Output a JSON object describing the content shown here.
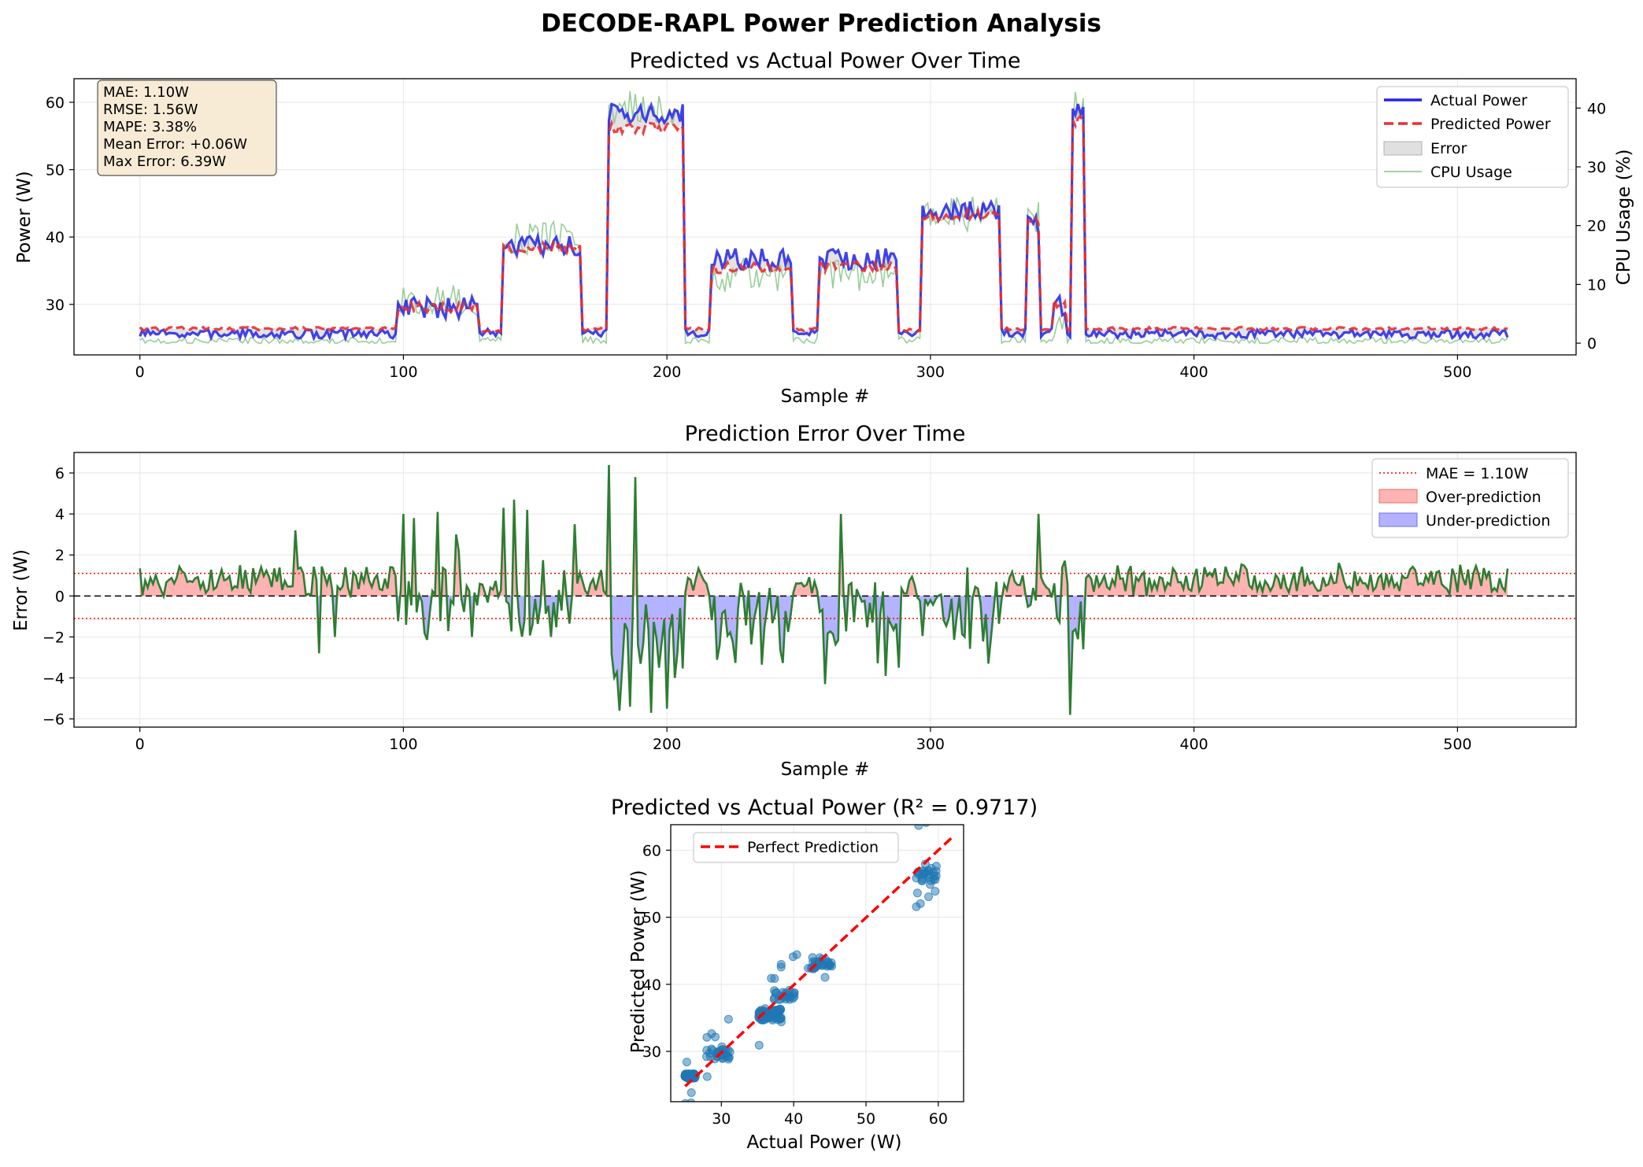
{
  "figure": {
    "title": "DECODE-RAPL Power Prediction Analysis"
  },
  "colors": {
    "actual": "#2222e8",
    "predicted": "#e83030",
    "cpu": "#88c488",
    "error_line": "#2e7d32",
    "over_fill": "#ff9999",
    "under_fill": "#9999ff",
    "mae_line": "#ff0000",
    "scatter": "#1f77b4",
    "perfect": "#ff0000",
    "stats_box": "#f8ebd6",
    "left_axis_text": "#0000ff",
    "right_axis_text": "#008000"
  },
  "chart_data": [
    {
      "id": "timeseries",
      "type": "line",
      "title": "Predicted vs Actual Power Over Time",
      "xlabel": "Sample #",
      "ylabel": "Power (W)",
      "y2label": "CPU Usage (%)",
      "xlim": [
        -25,
        545
      ],
      "ylim": [
        22.5,
        63.5
      ],
      "y2lim": [
        -2,
        45
      ],
      "xticks": [
        0,
        100,
        200,
        300,
        400,
        500
      ],
      "yticks": [
        30,
        40,
        50,
        60
      ],
      "y2ticks": [
        0,
        10,
        20,
        30,
        40
      ],
      "grid": true,
      "legend": "top-right",
      "legend_labels": {
        "actual": "Actual Power",
        "predicted": "Predicted Power",
        "error": "Error",
        "cpu": "CPU Usage"
      },
      "stats": [
        "MAE: 1.10W",
        "RMSE: 1.56W",
        "MAPE: 3.38%",
        "Mean Error: +0.06W",
        "Max Error: 6.39W"
      ],
      "segments": [
        {
          "start": 0,
          "end": 97,
          "actual": 25.6,
          "predicted": 26.4,
          "cpu": 0.4
        },
        {
          "start": 98,
          "end": 128,
          "actual": 29.5,
          "predicted": 29.6,
          "cpu": 7
        },
        {
          "start": 129,
          "end": 137,
          "actual": 25.8,
          "predicted": 26.2,
          "cpu": 0.5
        },
        {
          "start": 138,
          "end": 167,
          "actual": 38.5,
          "predicted": 38.4,
          "cpu": 18
        },
        {
          "start": 168,
          "end": 177,
          "actual": 25.8,
          "predicted": 26.3,
          "cpu": 0.5
        },
        {
          "start": 178,
          "end": 206,
          "actual": 58.2,
          "predicted": 56.2,
          "cpu": 40
        },
        {
          "start": 207,
          "end": 216,
          "actual": 25.8,
          "predicted": 26.3,
          "cpu": 0.5
        },
        {
          "start": 217,
          "end": 247,
          "actual": 36.7,
          "predicted": 35.4,
          "cpu": 11.5
        },
        {
          "start": 248,
          "end": 257,
          "actual": 25.8,
          "predicted": 26.3,
          "cpu": 0.5
        },
        {
          "start": 258,
          "end": 287,
          "actual": 36.8,
          "predicted": 35.6,
          "cpu": 11.5
        },
        {
          "start": 288,
          "end": 296,
          "actual": 25.8,
          "predicted": 26.2,
          "cpu": 0.5
        },
        {
          "start": 297,
          "end": 326,
          "actual": 44.0,
          "predicted": 43.2,
          "cpu": 22
        },
        {
          "start": 327,
          "end": 336,
          "actual": 25.8,
          "predicted": 26.3,
          "cpu": 0.5
        },
        {
          "start": 337,
          "end": 341,
          "actual": 42.0,
          "predicted": 42.5,
          "cpu": 21
        },
        {
          "start": 342,
          "end": 346,
          "actual": 25.8,
          "predicted": 26.3,
          "cpu": 0.5
        },
        {
          "start": 347,
          "end": 351,
          "actual": 29.8,
          "predicted": 30.3,
          "cpu": 3
        },
        {
          "start": 352,
          "end": 353,
          "actual": 25.8,
          "predicted": 26.3,
          "cpu": 0.5
        },
        {
          "start": 354,
          "end": 358,
          "actual": 58.8,
          "predicted": 57.2,
          "cpu": 40
        },
        {
          "start": 359,
          "end": 519,
          "actual": 25.6,
          "predicted": 26.4,
          "cpu": 0.4
        }
      ]
    },
    {
      "id": "error",
      "type": "line",
      "title": "Prediction Error Over Time",
      "xlabel": "Sample #",
      "ylabel": "Error (W)",
      "xlim": [
        -25,
        545
      ],
      "ylim": [
        -6.4,
        7.0
      ],
      "xticks": [
        0,
        100,
        200,
        300,
        400,
        500
      ],
      "yticks": [
        -6,
        -4,
        -2,
        0,
        2,
        4,
        6
      ],
      "mae": 1.1,
      "grid": true,
      "legend": "top-right",
      "legend_labels": {
        "mae": "MAE = 1.10W",
        "over": "Over-prediction",
        "under": "Under-prediction"
      },
      "spikes": [
        {
          "x": 59,
          "y": 3.2
        },
        {
          "x": 68,
          "y": -2.8
        },
        {
          "x": 74,
          "y": -2.0
        },
        {
          "x": 100,
          "y": 4.0
        },
        {
          "x": 104,
          "y": 3.8
        },
        {
          "x": 108,
          "y": -1.8
        },
        {
          "x": 113,
          "y": 4.1
        },
        {
          "x": 120,
          "y": 3.0
        },
        {
          "x": 126,
          "y": -2.0
        },
        {
          "x": 138,
          "y": 4.3
        },
        {
          "x": 142,
          "y": 4.7
        },
        {
          "x": 147,
          "y": 4.2
        },
        {
          "x": 156,
          "y": -2.0
        },
        {
          "x": 165,
          "y": 3.5
        },
        {
          "x": 178,
          "y": 6.39
        },
        {
          "x": 182,
          "y": -5.6
        },
        {
          "x": 186,
          "y": -5.4
        },
        {
          "x": 188,
          "y": 5.8
        },
        {
          "x": 194,
          "y": -5.7
        },
        {
          "x": 197,
          "y": -3.5
        },
        {
          "x": 200,
          "y": -5.5
        },
        {
          "x": 203,
          "y": -4.0
        },
        {
          "x": 266,
          "y": 4.0
        },
        {
          "x": 260,
          "y": -4.3
        },
        {
          "x": 283,
          "y": -3.9
        },
        {
          "x": 288,
          "y": -3.5
        },
        {
          "x": 322,
          "y": -3.3
        },
        {
          "x": 341,
          "y": 4.0
        },
        {
          "x": 353,
          "y": -5.8
        }
      ]
    },
    {
      "id": "scatter",
      "type": "scatter",
      "title": "Predicted vs Actual Power (R² = 0.9717)",
      "xlabel": "Actual Power (W)",
      "ylabel": "Predicted Power (W)",
      "xlim": [
        23.0,
        63.5
      ],
      "ylim": [
        22.5,
        63.8
      ],
      "xticks": [
        30,
        40,
        50,
        60
      ],
      "yticks": [
        30,
        40,
        50,
        60
      ],
      "r2": 0.9717,
      "grid": true,
      "legend": "top-left",
      "legend_labels": {
        "perfect": "Perfect Prediction"
      },
      "perfect_line": [
        [
          25.0,
          24.8
        ],
        [
          61.8,
          61.8
        ]
      ]
    }
  ]
}
